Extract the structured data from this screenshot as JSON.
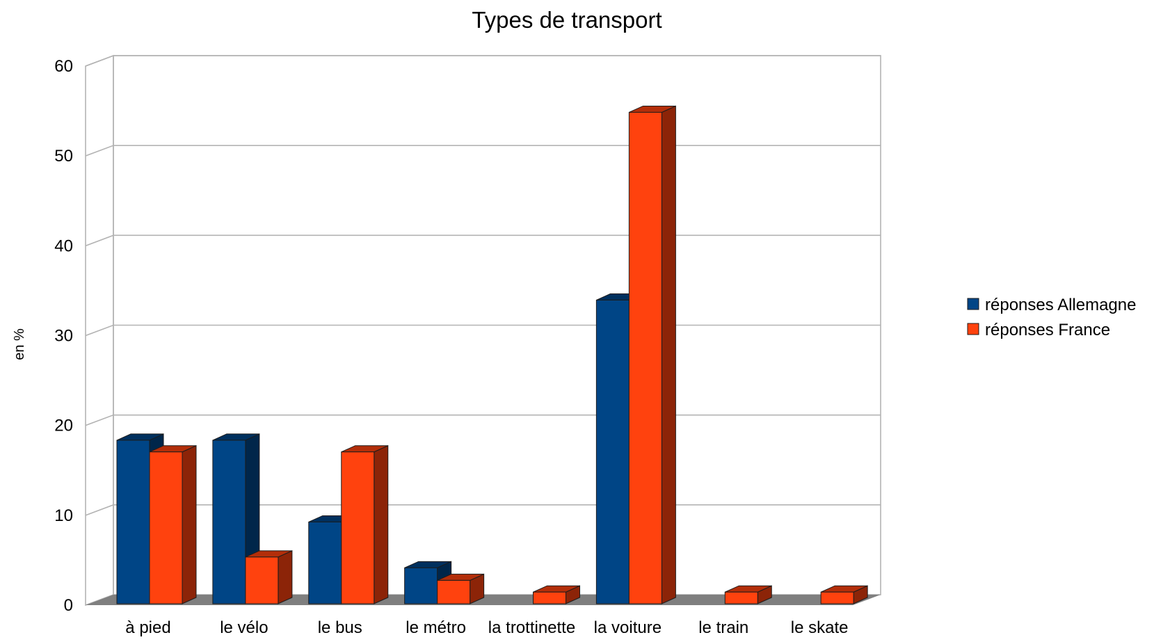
{
  "chart_data": {
    "type": "bar",
    "title": "Types de transport",
    "ylabel": "en %",
    "xlabel": "",
    "ylim": [
      0,
      60
    ],
    "yticks": [
      0,
      10,
      20,
      30,
      40,
      50,
      60
    ],
    "grid": true,
    "legend_position": "right",
    "categories": [
      "à pied",
      "le vélo",
      "le bus",
      "le métro",
      "la trottinette",
      "la voiture",
      "le train",
      "le skate"
    ],
    "series": [
      {
        "name": "réponses Allemagne",
        "color": "#004586",
        "values": [
          18.2,
          18.2,
          9.1,
          4.0,
          0,
          33.8,
          0,
          0
        ]
      },
      {
        "name": "réponses France",
        "color": "#ff420e",
        "values": [
          16.9,
          5.2,
          16.9,
          2.6,
          1.3,
          54.7,
          1.3,
          1.3
        ]
      }
    ]
  }
}
